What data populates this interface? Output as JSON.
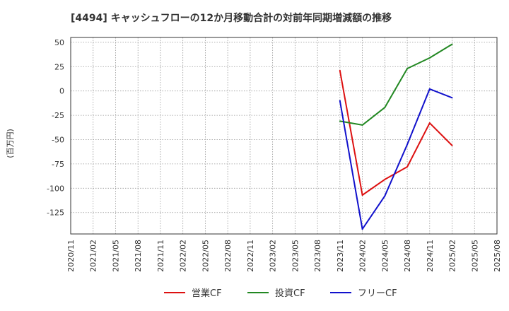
{
  "chart_data": {
    "type": "line",
    "title": "[4494]  キャッシュフローの12か月移動合計の対前年同期増減額の推移",
    "ylabel": "(百万円)",
    "xlabel": "",
    "ylim": [
      -147,
      55
    ],
    "yticks": [
      50,
      25,
      0,
      -25,
      -50,
      -75,
      -100,
      -125
    ],
    "ytick_labels": [
      "50",
      "25",
      "0",
      "-25",
      "-50",
      "-75",
      "-100",
      "-125"
    ],
    "categories": [
      "2020/11",
      "2021/02",
      "2021/05",
      "2021/08",
      "2021/11",
      "2022/02",
      "2022/05",
      "2022/08",
      "2022/11",
      "2023/02",
      "2023/05",
      "2023/08",
      "2023/11",
      "2024/02",
      "2024/05",
      "2024/08",
      "2024/11",
      "2025/02",
      "2025/05",
      "2025/08"
    ],
    "grid": true,
    "legend_position": "bottom",
    "series": [
      {
        "name": "営業CF",
        "color": "#dd1111",
        "values": [
          null,
          null,
          null,
          null,
          null,
          null,
          null,
          null,
          null,
          null,
          null,
          null,
          21,
          -107,
          -91,
          -78,
          -33,
          -56,
          null,
          null
        ]
      },
      {
        "name": "投資CF",
        "color": "#228822",
        "values": [
          null,
          null,
          null,
          null,
          null,
          null,
          null,
          null,
          null,
          null,
          null,
          null,
          -31,
          -35,
          -17,
          23,
          34,
          48,
          null,
          null
        ]
      },
      {
        "name": "フリーCF",
        "color": "#1111cc",
        "values": [
          null,
          null,
          null,
          null,
          null,
          null,
          null,
          null,
          null,
          null,
          null,
          null,
          -10,
          -142,
          -108,
          -55,
          2,
          -7,
          null,
          null
        ]
      }
    ]
  }
}
